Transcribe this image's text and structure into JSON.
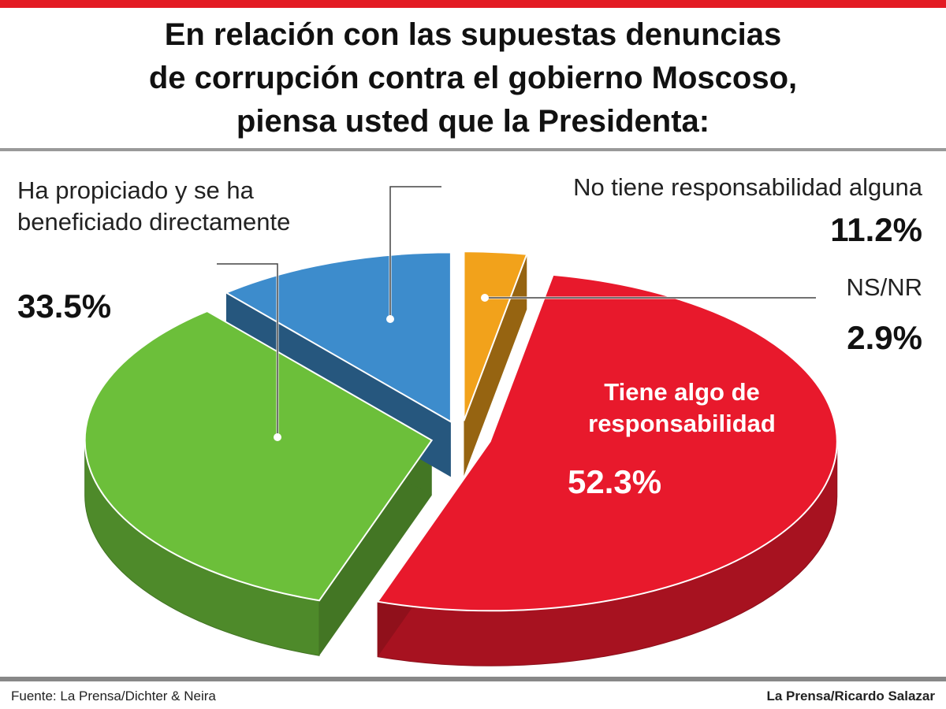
{
  "chart_data": {
    "type": "pie",
    "title": [
      "En relación con las supuestas denuncias",
      "de corrupción contra el gobierno Moscoso,",
      "piensa usted que la Presidenta:"
    ],
    "categories": [
      "NS/NR",
      "Tiene algo de responsabilidad",
      "Ha propiciado y se ha beneficiado directamente",
      "No tiene responsabilidad alguna"
    ],
    "values": [
      2.9,
      52.3,
      33.5,
      11.2
    ],
    "value_labels": [
      "2.9%",
      "52.3%",
      "33.5%",
      "11.2%"
    ],
    "colors": [
      "#f2a21b",
      "#e8192c",
      "#6cbf3a",
      "#3d8ccc"
    ],
    "source": "Fuente: La Prensa/Dichter & Neira",
    "credit": "La Prensa/Ricardo Salazar"
  }
}
